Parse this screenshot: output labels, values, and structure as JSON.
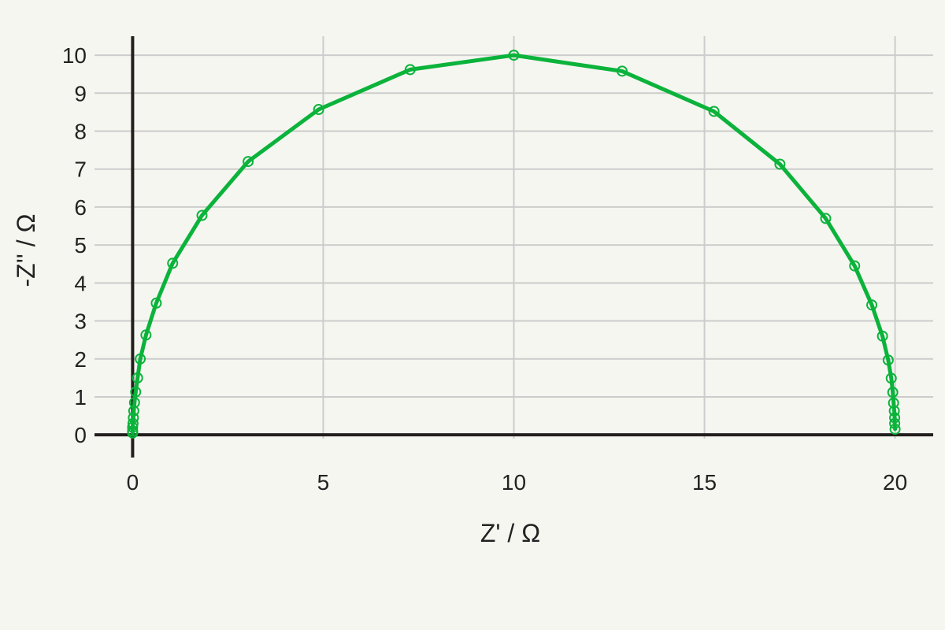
{
  "chart_data": {
    "type": "line",
    "title": "",
    "xlabel": "Z' / Ω",
    "ylabel": "-Z'' / Ω",
    "xlim": [
      -1,
      21
    ],
    "ylim": [
      -0.1,
      10.5
    ],
    "xticks": [
      0,
      5,
      10,
      15,
      20
    ],
    "yticks": [
      0,
      1,
      2,
      3,
      4,
      5,
      6,
      7,
      8,
      9,
      10
    ],
    "grid": true,
    "legend": "none",
    "colors": {
      "series": "#0bb33b",
      "grid": "#cccccc",
      "axis": "#231f1c",
      "background": "#f6f6f1"
    },
    "series": [
      {
        "x": [
          0.0,
          0.0,
          0.0,
          0.01,
          0.02,
          0.03,
          0.05,
          0.08,
          0.13,
          0.2,
          0.35,
          0.62,
          1.05,
          1.82,
          3.03,
          4.88,
          7.28,
          10.0,
          12.84,
          15.25,
          16.98,
          18.18,
          18.94,
          19.39,
          19.67,
          19.82,
          19.9,
          19.94,
          19.96,
          19.98,
          19.99,
          19.99,
          20.0
        ],
        "y": [
          0.05,
          0.1,
          0.2,
          0.3,
          0.45,
          0.63,
          0.85,
          1.13,
          1.5,
          2.0,
          2.63,
          3.47,
          4.52,
          5.78,
          7.2,
          8.57,
          9.62,
          10.0,
          9.58,
          8.52,
          7.13,
          5.7,
          4.45,
          3.42,
          2.6,
          1.97,
          1.49,
          1.12,
          0.84,
          0.63,
          0.45,
          0.3,
          0.15
        ]
      }
    ]
  }
}
